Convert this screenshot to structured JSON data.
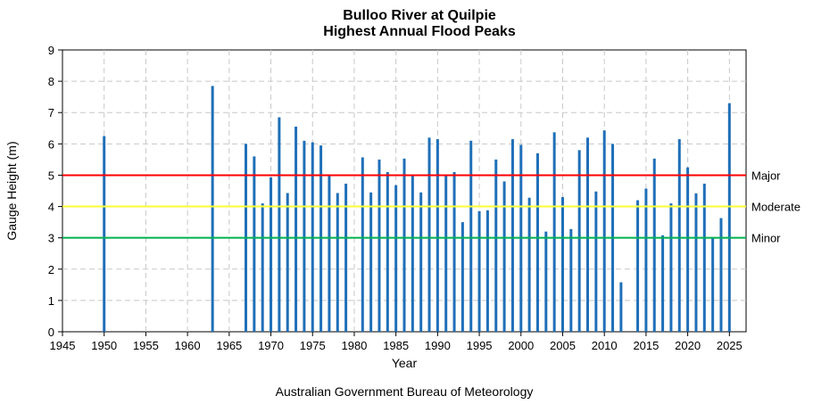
{
  "chart_data": {
    "type": "bar",
    "title": "Bulloo River at Quilpie",
    "subtitle": "Highest Annual Flood Peaks",
    "xlabel": "Year",
    "ylabel": "Gauge Height (m)",
    "xlim": [
      1945,
      2027
    ],
    "ylim": [
      0,
      9
    ],
    "xticks": [
      1945,
      1950,
      1955,
      1960,
      1965,
      1970,
      1975,
      1980,
      1985,
      1990,
      1995,
      2000,
      2005,
      2010,
      2015,
      2020,
      2025
    ],
    "yticks": [
      0,
      1,
      2,
      3,
      4,
      5,
      6,
      7,
      8,
      9
    ],
    "grid": true,
    "bar_color": "#1f6fb8",
    "x": [
      1950,
      1963,
      1967,
      1968,
      1969,
      1970,
      1971,
      1972,
      1973,
      1974,
      1975,
      1976,
      1977,
      1978,
      1979,
      1981,
      1982,
      1983,
      1984,
      1985,
      1986,
      1987,
      1988,
      1989,
      1990,
      1991,
      1992,
      1993,
      1994,
      1995,
      1996,
      1997,
      1998,
      1999,
      2000,
      2001,
      2002,
      2003,
      2004,
      2005,
      2006,
      2007,
      2008,
      2009,
      2010,
      2011,
      2012,
      2014,
      2015,
      2016,
      2017,
      2018,
      2019,
      2020,
      2021,
      2022,
      2023,
      2024,
      2025
    ],
    "values": [
      6.25,
      7.85,
      6.0,
      5.6,
      4.1,
      4.93,
      6.85,
      4.43,
      6.55,
      6.1,
      6.05,
      5.95,
      5.0,
      4.43,
      4.73,
      5.57,
      4.45,
      5.5,
      5.1,
      4.68,
      5.53,
      4.97,
      4.45,
      6.2,
      6.15,
      4.98,
      5.1,
      3.5,
      6.1,
      3.85,
      3.88,
      5.5,
      4.8,
      6.15,
      5.97,
      4.28,
      5.7,
      3.2,
      6.37,
      4.3,
      3.28,
      5.8,
      6.2,
      4.48,
      6.43,
      6.0,
      1.58,
      4.2,
      4.57,
      5.53,
      3.08,
      4.1,
      6.15,
      5.25,
      4.42,
      4.73,
      3.0,
      3.63,
      7.3
    ],
    "flood_levels": [
      {
        "name": "Major",
        "value": 5,
        "color": "#ff0000"
      },
      {
        "name": "Moderate",
        "value": 4,
        "color": "#ffff33"
      },
      {
        "name": "Minor",
        "value": 3,
        "color": "#00b050"
      }
    ],
    "source": "Australian Government Bureau of Meteorology"
  }
}
